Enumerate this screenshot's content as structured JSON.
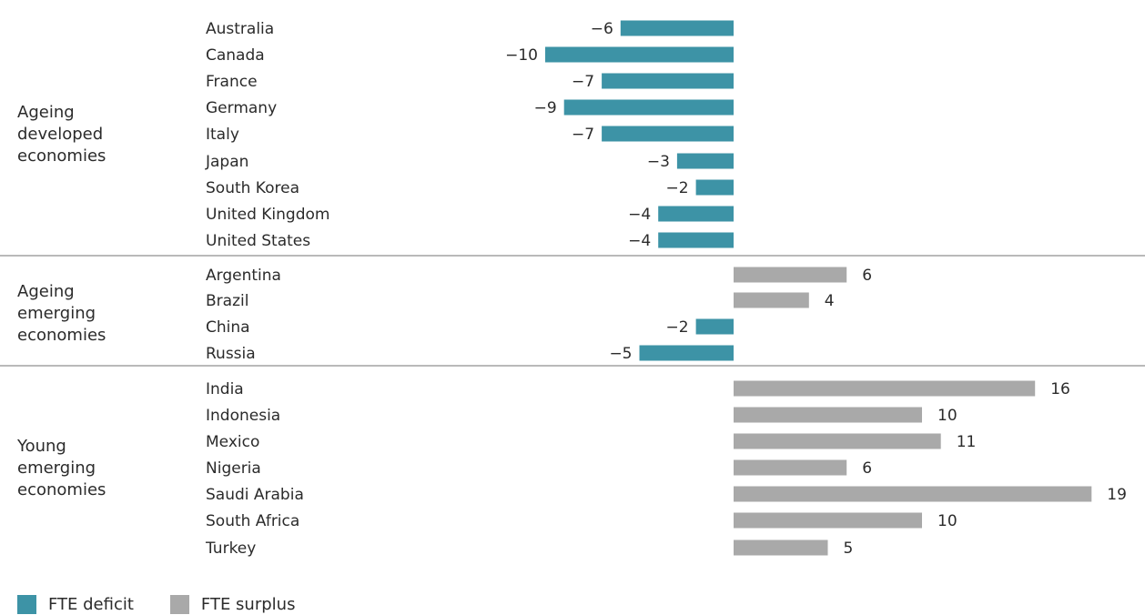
{
  "colors": {
    "deficit": "#3d93a6",
    "surplus": "#a9a9a9",
    "text": "#2b2b2b",
    "divider": "#8f8f8f"
  },
  "legend": {
    "deficit_label": "FTE deficit",
    "surplus_label": "FTE surplus"
  },
  "groups": [
    {
      "label": "Ageing\ndeveloped\neconomies"
    },
    {
      "label": "Ageing\nemerging\neconomies"
    },
    {
      "label": "Young\nemerging\neconomies"
    }
  ],
  "chart_data": {
    "type": "bar",
    "orientation": "horizontal",
    "categories": [
      "Australia",
      "Canada",
      "France",
      "Germany",
      "Italy",
      "Japan",
      "South Korea",
      "United Kingdom",
      "United States",
      "Argentina",
      "Brazil",
      "China",
      "Russia",
      "India",
      "Indonesia",
      "Mexico",
      "Nigeria",
      "Saudi Arabia",
      "South Africa",
      "Turkey"
    ],
    "values": [
      -6,
      -10,
      -7,
      -9,
      -7,
      -3,
      -2,
      -4,
      -4,
      6,
      4,
      -2,
      -5,
      16,
      10,
      11,
      6,
      19,
      10,
      5
    ],
    "value_labels": [
      "−6",
      "−10",
      "−7",
      "−9",
      "−7",
      "−3",
      "−2",
      "−4",
      "−4",
      "6",
      "4",
      "−2",
      "−5",
      "16",
      "10",
      "11",
      "6",
      "19",
      "10",
      "5"
    ],
    "group_index": [
      0,
      0,
      0,
      0,
      0,
      0,
      0,
      0,
      0,
      1,
      1,
      1,
      1,
      2,
      2,
      2,
      2,
      2,
      2,
      2
    ],
    "xlim": [
      -10,
      19
    ],
    "grid": false,
    "legend_position": "bottom-left"
  }
}
